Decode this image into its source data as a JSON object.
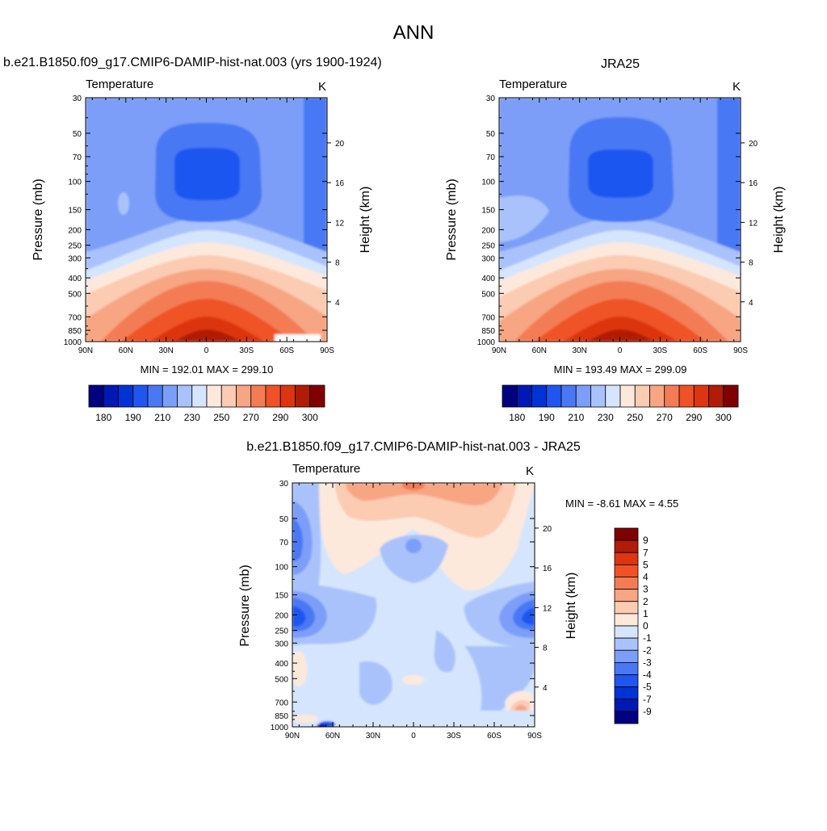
{
  "page": {
    "title": "ANN"
  },
  "panels": [
    {
      "id": "model",
      "title": "b.e21.B1850.f09_g17.CMIP6-DAMIP-hist-nat.003 (yrs 1900-1924)",
      "variable": "Temperature",
      "units": "K",
      "stats": "MIN = 192.01  MAX = 299.10"
    },
    {
      "id": "obs",
      "title": "JRA25",
      "variable": "Temperature",
      "units": "K",
      "stats": "MIN = 193.49  MAX = 299.09"
    },
    {
      "id": "diff",
      "title": "b.e21.B1850.f09_g17.CMIP6-DAMIP-hist-nat.003 - JRA25",
      "variable": "Temperature",
      "units": "K",
      "stats": "MIN =  -8.61  MAX =   4.55"
    }
  ],
  "axes": {
    "ylabel": "Pressure (mb)",
    "y2label": "Height (km)",
    "pressure_ticks": [
      "30",
      "50",
      "70",
      "100",
      "150",
      "200",
      "250",
      "300",
      "400",
      "500",
      "700",
      "850",
      "1000"
    ],
    "height_ticks": [
      "20",
      "16",
      "12",
      "8",
      "4"
    ],
    "lat_ticks": [
      "90N",
      "60N",
      "30N",
      "0",
      "30S",
      "60S",
      "90S"
    ]
  },
  "colorbar_abs": {
    "colors": [
      "#000080",
      "#0019b4",
      "#0033d6",
      "#1f56f0",
      "#4a78f5",
      "#7b9ef8",
      "#a9c2fb",
      "#d5e5fd",
      "#fde9dc",
      "#fbcbb2",
      "#f7a583",
      "#f47c55",
      "#ef5226",
      "#dc3510",
      "#b11c06",
      "#800000"
    ],
    "labels": [
      "180",
      "190",
      "210",
      "230",
      "250",
      "270",
      "290",
      "300"
    ]
  },
  "colorbar_diff": {
    "colors": [
      "#800000",
      "#b11c06",
      "#dc3510",
      "#ef5226",
      "#f47c55",
      "#f7a583",
      "#fbcbb2",
      "#fde9dc",
      "#d5e5fd",
      "#a9c2fb",
      "#7b9ef8",
      "#4a78f5",
      "#1f56f0",
      "#0033d6",
      "#0019b4",
      "#000080"
    ],
    "labels": [
      "9",
      "7",
      "5",
      "4",
      "3",
      "2",
      "1",
      "0",
      "-1",
      "-2",
      "-3",
      "-4",
      "-5",
      "-7",
      "-9"
    ]
  },
  "chart_data": [
    {
      "type": "heatmap",
      "title": "b.e21.B1850.f09_g17.CMIP6-DAMIP-hist-nat.003 (yrs 1900-1924)",
      "xlabel": "",
      "ylabel": "Pressure (mb)",
      "y2label": "Height (km)",
      "x_ticks": [
        "90N",
        "60N",
        "30N",
        "0",
        "30S",
        "60S",
        "90S"
      ],
      "y_ticks_mb": [
        30,
        50,
        70,
        100,
        150,
        200,
        250,
        300,
        400,
        500,
        700,
        850,
        1000
      ],
      "y2_ticks_km": [
        20,
        16,
        12,
        8,
        4
      ],
      "units": "K",
      "min": 192.01,
      "max": 299.1,
      "contour_levels": [
        180,
        185,
        190,
        200,
        210,
        220,
        230,
        240,
        250,
        260,
        270,
        280,
        290,
        295,
        300
      ],
      "profile_by_pressure_mb": [
        {
          "p": 30,
          "equator": 220,
          "pole": 230
        },
        {
          "p": 70,
          "equator": 194,
          "pole": 225
        },
        {
          "p": 100,
          "equator": 196,
          "pole": 222
        },
        {
          "p": 200,
          "equator": 222,
          "pole": 220
        },
        {
          "p": 300,
          "equator": 245,
          "pole": 228
        },
        {
          "p": 500,
          "equator": 268,
          "pole": 245
        },
        {
          "p": 700,
          "equator": 285,
          "pole": 255
        },
        {
          "p": 1000,
          "equator": 299,
          "pole": 262
        }
      ]
    },
    {
      "type": "heatmap",
      "title": "JRA25",
      "xlabel": "",
      "ylabel": "Pressure (mb)",
      "y2label": "Height (km)",
      "x_ticks": [
        "90N",
        "60N",
        "30N",
        "0",
        "30S",
        "60S",
        "90S"
      ],
      "y_ticks_mb": [
        30,
        50,
        70,
        100,
        150,
        200,
        250,
        300,
        400,
        500,
        700,
        850,
        1000
      ],
      "y2_ticks_km": [
        20,
        16,
        12,
        8,
        4
      ],
      "units": "K",
      "min": 193.49,
      "max": 299.09,
      "contour_levels": [
        180,
        185,
        190,
        200,
        210,
        220,
        230,
        240,
        250,
        260,
        270,
        280,
        290,
        295,
        300
      ],
      "profile_by_pressure_mb": [
        {
          "p": 30,
          "equator": 220,
          "pole": 230
        },
        {
          "p": 70,
          "equator": 195,
          "pole": 225
        },
        {
          "p": 100,
          "equator": 197,
          "pole": 222
        },
        {
          "p": 200,
          "equator": 222,
          "pole": 222
        },
        {
          "p": 300,
          "equator": 245,
          "pole": 230
        },
        {
          "p": 500,
          "equator": 268,
          "pole": 246
        },
        {
          "p": 700,
          "equator": 285,
          "pole": 256
        },
        {
          "p": 1000,
          "equator": 299,
          "pole": 263
        }
      ]
    },
    {
      "type": "heatmap",
      "title": "b.e21.B1850.f09_g17.CMIP6-DAMIP-hist-nat.003 - JRA25",
      "xlabel": "",
      "ylabel": "Pressure (mb)",
      "y2label": "Height (km)",
      "x_ticks": [
        "90N",
        "60N",
        "30N",
        "0",
        "30S",
        "60S",
        "90S"
      ],
      "y_ticks_mb": [
        30,
        50,
        70,
        100,
        150,
        200,
        250,
        300,
        400,
        500,
        700,
        850,
        1000
      ],
      "y2_ticks_km": [
        20,
        16,
        12,
        8,
        4
      ],
      "units": "K",
      "min": -8.61,
      "max": 4.55,
      "contour_levels": [
        -9,
        -7,
        -5,
        -4,
        -3,
        -2,
        -1,
        0,
        1,
        2,
        3,
        4,
        5,
        7,
        9
      ],
      "features": [
        {
          "region": "tropical upper stratosphere 30-50 mb",
          "approx_value": 3
        },
        {
          "region": "polar tropopause ~200 mb",
          "approx_value": -5
        },
        {
          "region": "bulk troposphere",
          "approx_value": -0.5
        }
      ]
    }
  ]
}
